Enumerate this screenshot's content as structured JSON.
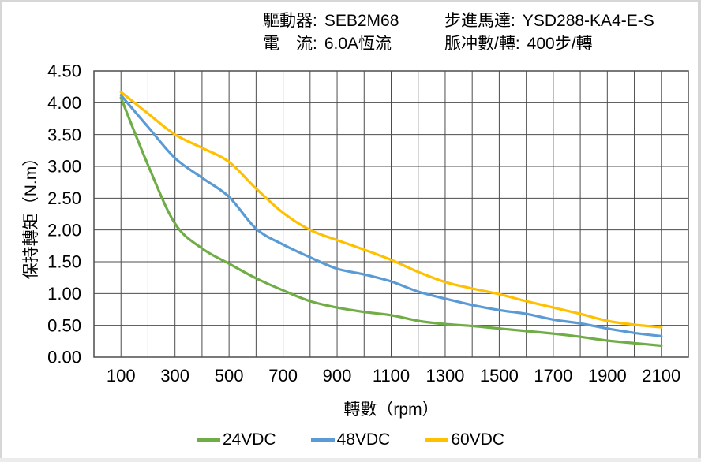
{
  "window": {
    "bg": "#ffffff",
    "frame_color": "#d6d6d6",
    "bottom_strip_color": "#ececec"
  },
  "header": {
    "driver_label": "驅動器:",
    "driver_value": "SEB2M68",
    "current_label": "電　流:",
    "current_value": "6.0A恆流",
    "motor_label": "步進馬達:",
    "motor_value": "YSD288-KA4-E-S",
    "pulses_label": "脈冲數/轉:",
    "pulses_value": "400步/轉"
  },
  "chart_data": {
    "type": "line",
    "title": "",
    "xlabel": "轉數（rpm）",
    "ylabel": "保持轉矩（N.m）",
    "xlim": [
      0,
      2200
    ],
    "ylim": [
      0,
      4.5
    ],
    "ytick_step": 0.5,
    "ytick_format_decimals": 2,
    "grid": true,
    "grid_color": "#4d4d4d",
    "axis_text_color": "#000000",
    "legend_position": "bottom",
    "x": [
      100,
      200,
      300,
      400,
      500,
      600,
      700,
      800,
      900,
      1000,
      1100,
      1200,
      1300,
      1400,
      1500,
      1600,
      1700,
      1800,
      1900,
      2000,
      2100
    ],
    "xticks": [
      100,
      300,
      500,
      700,
      900,
      1100,
      1300,
      1500,
      1700,
      1900,
      2100
    ],
    "series": [
      {
        "name": "24VDC",
        "color": "#70AD47",
        "values": [
          4.08,
          3.02,
          2.1,
          1.71,
          1.47,
          1.24,
          1.05,
          0.88,
          0.78,
          0.71,
          0.66,
          0.57,
          0.52,
          0.49,
          0.45,
          0.41,
          0.37,
          0.32,
          0.26,
          0.22,
          0.18
        ]
      },
      {
        "name": "48VDC",
        "color": "#5B9BD5",
        "values": [
          4.12,
          3.62,
          3.13,
          2.82,
          2.52,
          2.02,
          1.77,
          1.57,
          1.39,
          1.3,
          1.19,
          1.03,
          0.92,
          0.82,
          0.74,
          0.68,
          0.59,
          0.53,
          0.45,
          0.38,
          0.33
        ]
      },
      {
        "name": "60VDC",
        "color": "#FFC000",
        "values": [
          4.17,
          3.83,
          3.5,
          3.29,
          3.07,
          2.65,
          2.27,
          2.0,
          1.84,
          1.69,
          1.53,
          1.34,
          1.18,
          1.08,
          0.99,
          0.88,
          0.78,
          0.68,
          0.57,
          0.51,
          0.47
        ]
      }
    ]
  }
}
